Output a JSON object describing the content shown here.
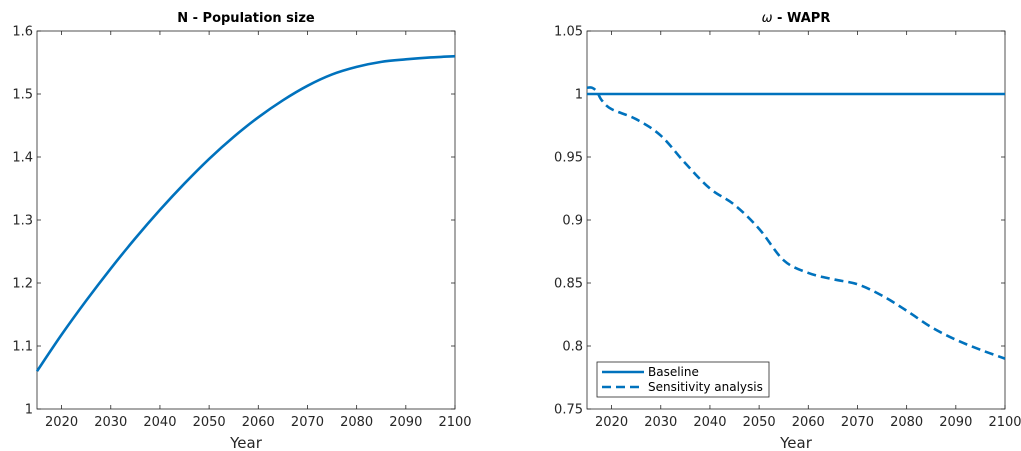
{
  "chart_data": [
    {
      "type": "line",
      "title": "N - Population size",
      "xlabel": "Year",
      "ylabel": "",
      "xlim": [
        2015,
        2100
      ],
      "ylim": [
        1,
        1.6
      ],
      "xticks": [
        "2020",
        "2030",
        "2040",
        "2050",
        "2060",
        "2070",
        "2080",
        "2090",
        "2100"
      ],
      "yticks": [
        "1",
        "1.1",
        "1.2",
        "1.3",
        "1.4",
        "1.5",
        "1.6"
      ],
      "grid": false,
      "color": "#0072bd",
      "series": [
        {
          "name": "",
          "style": "solid",
          "x": [
            2015,
            2020,
            2025,
            2030,
            2035,
            2040,
            2045,
            2050,
            2055,
            2060,
            2065,
            2070,
            2075,
            2080,
            2085,
            2090,
            2095,
            2100
          ],
          "y": [
            1.06,
            1.118,
            1.172,
            1.223,
            1.271,
            1.316,
            1.358,
            1.397,
            1.432,
            1.463,
            1.49,
            1.513,
            1.531,
            1.543,
            1.551,
            1.555,
            1.558,
            1.56
          ]
        }
      ]
    },
    {
      "type": "line",
      "title_symbol": "ω",
      "title_text": " - WAPR",
      "xlabel": "Year",
      "ylabel": "",
      "xlim": [
        2015,
        2100
      ],
      "ylim": [
        0.75,
        1.05
      ],
      "xticks": [
        "2020",
        "2030",
        "2040",
        "2050",
        "2060",
        "2070",
        "2080",
        "2090",
        "2100"
      ],
      "yticks": [
        "0.75",
        "0.8",
        "0.85",
        "0.9",
        "0.95",
        "1",
        "1.05"
      ],
      "grid": false,
      "legend_position": "bottom-left",
      "color": "#0072bd",
      "series": [
        {
          "name": "Baseline",
          "style": "solid",
          "x": [
            2015,
            2100
          ],
          "y": [
            1.0,
            1.0
          ]
        },
        {
          "name": "Sensitivity analysis",
          "style": "dashed",
          "x": [
            2015,
            2016,
            2017,
            2018,
            2020,
            2025,
            2030,
            2035,
            2040,
            2045,
            2050,
            2055,
            2060,
            2065,
            2070,
            2075,
            2080,
            2085,
            2090,
            2095,
            2100
          ],
          "y": [
            1.005,
            1.005,
            1.002,
            0.995,
            0.988,
            0.98,
            0.967,
            0.945,
            0.925,
            0.912,
            0.893,
            0.868,
            0.858,
            0.853,
            0.849,
            0.84,
            0.828,
            0.815,
            0.805,
            0.797,
            0.79
          ]
        }
      ]
    }
  ]
}
